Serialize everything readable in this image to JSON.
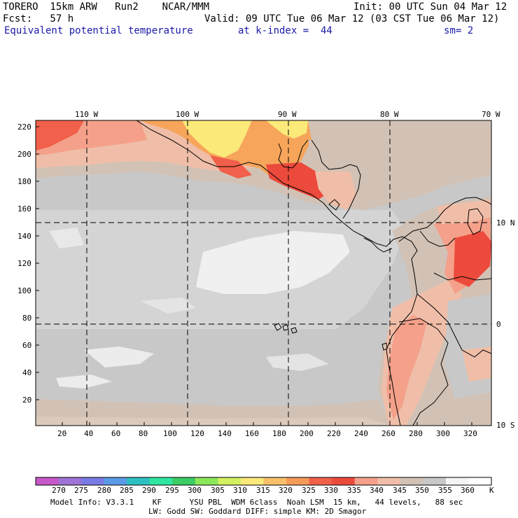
{
  "header": {
    "line1_left": "TORERO  15km ARW   Run2    NCAR/MMM",
    "line1_right": "Init: 00 UTC Sun 04 Mar 12",
    "line2_left": "Fcst:   57 h",
    "line2_right": "Valid: 09 UTC Tue 06 Mar 12 (03 CST Tue 06 Mar 12)",
    "field": "Equivalent potential temperature",
    "level": "at k-index =  44",
    "smoothing": "sm= 2"
  },
  "map": {
    "lon_labels": [
      "110 W",
      "100 W",
      "90 W",
      "80 W",
      "70 W"
    ],
    "lat_labels": [
      "10 N",
      "0",
      "10 S"
    ],
    "grid_x_ticks": [
      "20",
      "40",
      "60",
      "80",
      "100",
      "120",
      "140",
      "160",
      "180",
      "200",
      "220",
      "240",
      "260",
      "280",
      "300",
      "320"
    ],
    "grid_y_ticks": [
      "220",
      "200",
      "180",
      "160",
      "140",
      "120",
      "100",
      "80",
      "60",
      "40",
      "20"
    ],
    "colors": {
      "cool_gray": "#c8c8c8",
      "light_gray": "#d4d4d4",
      "whitish": "#f0f0f0",
      "warm_gray": "#d2c2b6",
      "peach": "#f0bea8",
      "salmon": "#f4a08a",
      "red_orange": "#f0604a",
      "bright_red": "#ec4a3c",
      "orange": "#f6a55a",
      "yellow": "#fbe97a",
      "coast": "#000000"
    }
  },
  "colorbar": {
    "labels": [
      "270",
      "275",
      "280",
      "285",
      "290",
      "295",
      "300",
      "305",
      "310",
      "315",
      "320",
      "325",
      "330",
      "335",
      "340",
      "345",
      "350",
      "355",
      "360"
    ],
    "unit": "K",
    "colors": [
      "#c858c8",
      "#9e73d6",
      "#7a7ae6",
      "#5a9ae6",
      "#2ec0c0",
      "#2ee6a0",
      "#3ccc64",
      "#8ce65a",
      "#d2f060",
      "#fbe97a",
      "#f8c06a",
      "#f69a5a",
      "#f06048",
      "#ec4a3c",
      "#f4a08a",
      "#f0bea8",
      "#d2c2b6",
      "#c8c8c8",
      "#f4f4f4"
    ]
  },
  "footer": {
    "line1": "Model Info: V3.3.1    KF      YSU PBL  WDM 6class  Noah LSM  15 km,   44 levels,   88 sec",
    "line2": "LW: Godd SW: Goddard DIFF: simple KM: 2D Smagor"
  }
}
